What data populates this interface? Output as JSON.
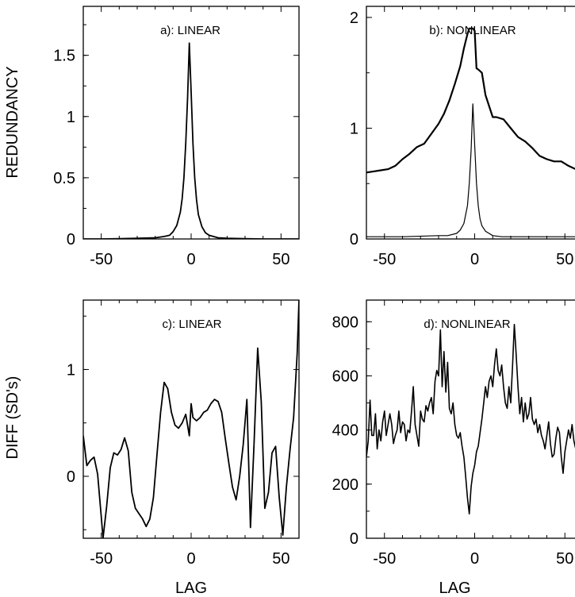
{
  "chart_data": [
    {
      "id": "a",
      "type": "line",
      "title": "a): LINEAR",
      "ylabel": "REDUNDANCY",
      "xlabel": "",
      "xlim": [
        -60,
        60
      ],
      "ylim": [
        0,
        1.9
      ],
      "xticks": [
        -50,
        0,
        50
      ],
      "xtick_labels": [
        "-50",
        "0",
        "50"
      ],
      "yticks": [
        0,
        0.5,
        1,
        1.5
      ],
      "ytick_labels": [
        "0",
        "0.5",
        "1",
        "1.5"
      ],
      "grid": false,
      "series": [
        {
          "x": [
            -60,
            -50,
            -40,
            -30,
            -20,
            -15,
            -12,
            -10,
            -8,
            -6,
            -5,
            -4,
            -3,
            -2,
            -1,
            0,
            1,
            2,
            3,
            4,
            6,
            8,
            10,
            15,
            20,
            30,
            40,
            50,
            60
          ],
          "values": [
            0,
            0,
            0.002,
            0.005,
            0.01,
            0.02,
            0.03,
            0.06,
            0.11,
            0.22,
            0.33,
            0.5,
            0.78,
            1.15,
            1.6,
            1.2,
            0.78,
            0.5,
            0.32,
            0.2,
            0.1,
            0.05,
            0.03,
            0.01,
            0.005,
            0.002,
            0,
            0,
            0
          ]
        }
      ]
    },
    {
      "id": "b",
      "type": "line",
      "title": "b): NONLINEAR",
      "ylabel": "",
      "xlabel": "",
      "xlim": [
        -60,
        60
      ],
      "ylim": [
        0,
        2.1
      ],
      "xticks": [
        -50,
        0,
        50
      ],
      "xtick_labels": [
        "-50",
        "0",
        "50"
      ],
      "yticks": [
        0,
        1,
        2
      ],
      "ytick_labels": [
        "0",
        "1",
        "2"
      ],
      "grid": false,
      "series": [
        {
          "x": [
            -60,
            -56,
            -52,
            -48,
            -44,
            -40,
            -36,
            -32,
            -28,
            -24,
            -20,
            -17,
            -14,
            -11,
            -8,
            -6,
            -4,
            -3,
            -1,
            0,
            1,
            2,
            4,
            6,
            8,
            10,
            12,
            16,
            20,
            24,
            28,
            32,
            36,
            40,
            44,
            48,
            52,
            56,
            60
          ],
          "values": [
            0.6,
            0.61,
            0.62,
            0.63,
            0.66,
            0.72,
            0.77,
            0.83,
            0.86,
            0.95,
            1.04,
            1.13,
            1.25,
            1.4,
            1.56,
            1.72,
            1.85,
            1.9,
            1.9,
            1.88,
            1.54,
            1.53,
            1.5,
            1.3,
            1.2,
            1.1,
            1.1,
            1.08,
            1.0,
            0.92,
            0.88,
            0.82,
            0.75,
            0.72,
            0.7,
            0.7,
            0.66,
            0.63,
            0.61
          ]
        },
        {
          "x": [
            -60,
            -40,
            -20,
            -15,
            -10,
            -8,
            -6,
            -4,
            -3,
            -2,
            -1,
            0,
            1,
            2,
            3,
            4,
            6,
            8,
            10,
            15,
            20,
            40,
            60
          ],
          "values": [
            0.02,
            0.02,
            0.03,
            0.03,
            0.05,
            0.08,
            0.14,
            0.3,
            0.5,
            0.8,
            1.22,
            0.85,
            0.5,
            0.3,
            0.18,
            0.12,
            0.07,
            0.05,
            0.03,
            0.02,
            0.02,
            0.02,
            0.02
          ]
        }
      ]
    },
    {
      "id": "c",
      "type": "line",
      "title": "c): LINEAR",
      "ylabel": "DIFF (SD's)",
      "xlabel": "LAG",
      "xlim": [
        -60,
        60
      ],
      "ylim": [
        -0.58,
        1.65
      ],
      "xticks": [
        -50,
        0,
        50
      ],
      "xtick_labels": [
        "-50",
        "0",
        "50"
      ],
      "yticks": [
        0,
        1
      ],
      "ytick_labels": [
        "0",
        "1"
      ],
      "grid": false,
      "series": [
        {
          "x": [
            -60,
            -58,
            -56,
            -54,
            -52,
            -50,
            -49,
            -47,
            -45,
            -43,
            -41,
            -39,
            -37,
            -35,
            -33,
            -31,
            -29,
            -27,
            -25,
            -23,
            -21,
            -19,
            -17,
            -15,
            -13,
            -11,
            -9,
            -7,
            -5,
            -3,
            -1,
            0,
            1,
            3,
            5,
            7,
            9,
            11,
            13,
            15,
            17,
            19,
            21,
            23,
            25,
            27,
            29,
            31,
            33,
            35,
            37,
            39,
            41,
            43,
            45,
            47,
            49,
            51,
            53,
            55,
            57,
            59,
            60
          ],
          "values": [
            0.38,
            0.1,
            0.15,
            0.18,
            0.02,
            -0.38,
            -0.58,
            -0.28,
            0.08,
            0.22,
            0.2,
            0.25,
            0.36,
            0.24,
            -0.15,
            -0.3,
            -0.35,
            -0.4,
            -0.47,
            -0.4,
            -0.2,
            0.2,
            0.6,
            0.88,
            0.82,
            0.6,
            0.48,
            0.45,
            0.5,
            0.58,
            0.38,
            0.68,
            0.55,
            0.52,
            0.55,
            0.6,
            0.62,
            0.68,
            0.72,
            0.7,
            0.6,
            0.35,
            0.12,
            -0.1,
            -0.22,
            0.0,
            0.3,
            0.72,
            -0.48,
            0.3,
            1.2,
            0.7,
            -0.3,
            -0.15,
            0.22,
            0.28,
            -0.2,
            -0.55,
            -0.1,
            0.25,
            0.55,
            1.15,
            1.65
          ]
        }
      ]
    },
    {
      "id": "d",
      "type": "line",
      "title": "d): NONLINEAR",
      "ylabel": "",
      "xlabel": "LAG",
      "xlim": [
        -60,
        60
      ],
      "ylim": [
        0,
        880
      ],
      "xticks": [
        -50,
        0,
        50
      ],
      "xtick_labels": [
        "-50",
        "0",
        "50"
      ],
      "yticks": [
        0,
        200,
        400,
        600,
        800
      ],
      "ytick_labels": [
        "0",
        "200",
        "400",
        "600",
        "800"
      ],
      "grid": false,
      "series": [
        {
          "x": [
            -60,
            -59,
            -58,
            -57,
            -56,
            -55,
            -54,
            -53,
            -52,
            -51,
            -50,
            -49,
            -48,
            -47,
            -46,
            -45,
            -44,
            -43,
            -42,
            -41,
            -40,
            -39,
            -38,
            -37,
            -36,
            -35,
            -34,
            -33,
            -32,
            -31,
            -30,
            -29,
            -28,
            -27,
            -26,
            -25,
            -24,
            -23,
            -22,
            -21,
            -20,
            -19,
            -18,
            -17,
            -16,
            -15,
            -14,
            -13,
            -12,
            -11,
            -10,
            -9,
            -8,
            -7,
            -6,
            -5,
            -4,
            -3,
            -2,
            -1,
            0,
            1,
            2,
            3,
            4,
            5,
            6,
            7,
            8,
            9,
            10,
            11,
            12,
            13,
            14,
            15,
            16,
            17,
            18,
            19,
            20,
            21,
            22,
            23,
            24,
            25,
            26,
            27,
            28,
            29,
            30,
            31,
            32,
            33,
            34,
            35,
            36,
            37,
            38,
            39,
            40,
            41,
            42,
            43,
            44,
            45,
            46,
            47,
            48,
            49,
            50,
            51,
            52,
            53,
            54,
            55,
            56,
            57,
            58,
            59,
            60
          ],
          "values": [
            300,
            360,
            510,
            380,
            380,
            460,
            330,
            400,
            360,
            430,
            470,
            380,
            420,
            460,
            420,
            350,
            380,
            400,
            470,
            390,
            430,
            420,
            360,
            400,
            390,
            470,
            560,
            420,
            380,
            340,
            470,
            440,
            430,
            490,
            470,
            500,
            520,
            460,
            580,
            620,
            600,
            770,
            560,
            690,
            540,
            650,
            480,
            460,
            500,
            420,
            380,
            370,
            390,
            340,
            300,
            230,
            150,
            90,
            190,
            240,
            270,
            320,
            340,
            390,
            440,
            500,
            560,
            520,
            580,
            600,
            560,
            640,
            700,
            620,
            600,
            640,
            560,
            500,
            480,
            560,
            500,
            640,
            790,
            680,
            560,
            460,
            520,
            430,
            500,
            440,
            460,
            520,
            440,
            420,
            440,
            390,
            420,
            380,
            360,
            330,
            380,
            430,
            350,
            300,
            310,
            370,
            410,
            390,
            300,
            240,
            320,
            360,
            400,
            370,
            420,
            360,
            330,
            300,
            280,
            300,
            270
          ]
        }
      ]
    }
  ]
}
